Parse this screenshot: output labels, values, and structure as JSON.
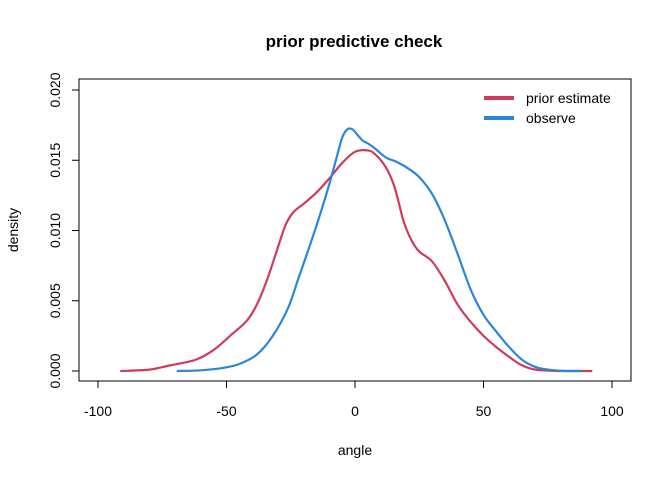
{
  "chart_data": {
    "type": "line",
    "title": "prior predictive check",
    "xlabel": "angle",
    "ylabel": "density",
    "xlim": [
      -100,
      100
    ],
    "ylim": [
      0,
      0.02
    ],
    "xticks": [
      -100,
      -50,
      0,
      50,
      100
    ],
    "yticks": [
      0.0,
      0.005,
      0.01,
      0.015,
      0.02
    ],
    "xtick_labels": [
      "-100",
      "-50",
      "0",
      "50",
      "100"
    ],
    "ytick_labels": [
      "0.000",
      "0.005",
      "0.010",
      "0.015",
      "0.020"
    ],
    "grid": false,
    "legend_position": "top-right",
    "series": [
      {
        "name": "prior estimate",
        "color": "#D03A5B",
        "x": [
          -91,
          -80,
          -72,
          -62,
          -55,
          -48,
          -42,
          -38,
          -34,
          -30,
          -27,
          -24,
          -20,
          -15,
          -10,
          -5,
          0,
          5,
          8,
          12,
          15,
          17,
          19,
          22,
          25,
          30,
          35,
          40,
          45,
          50,
          55,
          60,
          65,
          70,
          75,
          80,
          92
        ],
        "y": [
          0.0,
          0.0001,
          0.0004,
          0.0008,
          0.0015,
          0.0026,
          0.0036,
          0.0048,
          0.0066,
          0.0088,
          0.0104,
          0.0113,
          0.0119,
          0.0127,
          0.0137,
          0.0148,
          0.0156,
          0.0157,
          0.0154,
          0.0145,
          0.0133,
          0.012,
          0.0106,
          0.0093,
          0.0085,
          0.0078,
          0.0064,
          0.0047,
          0.0035,
          0.0025,
          0.0017,
          0.001,
          0.0004,
          0.0001,
          3e-05,
          0.0,
          0.0
        ]
      },
      {
        "name": "observe",
        "color": "#2C86D8",
        "x": [
          -69,
          -60,
          -52,
          -45,
          -38,
          -32,
          -26,
          -22,
          -18,
          -14,
          -10,
          -7,
          -5,
          -3,
          -1,
          1,
          3,
          5,
          8,
          12,
          16,
          20,
          25,
          30,
          35,
          40,
          45,
          50,
          55,
          60,
          65,
          70,
          75,
          80,
          85,
          88
        ],
        "y": [
          0.0,
          5e-05,
          0.0002,
          0.0005,
          0.0012,
          0.0025,
          0.0045,
          0.0066,
          0.0087,
          0.0109,
          0.0133,
          0.0153,
          0.0166,
          0.0172,
          0.0172,
          0.0168,
          0.0164,
          0.0162,
          0.0158,
          0.0152,
          0.0149,
          0.0145,
          0.0138,
          0.0126,
          0.0107,
          0.0083,
          0.0058,
          0.004,
          0.0028,
          0.0017,
          0.0008,
          0.0003,
          0.0001,
          2e-05,
          0.0,
          0.0
        ]
      }
    ]
  }
}
